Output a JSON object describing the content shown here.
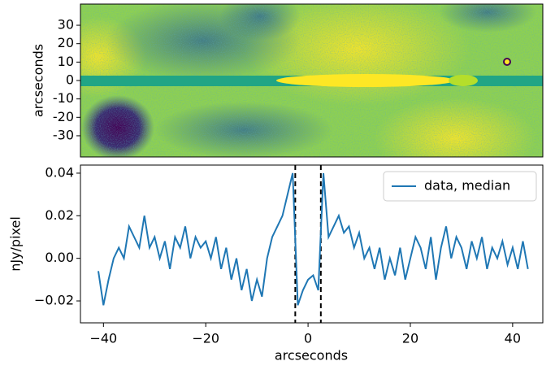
{
  "chart_data": [
    {
      "type": "image",
      "ylabel": "arcseconds",
      "xlim": [
        -44.5,
        45.9
      ],
      "ylim": [
        -41.5,
        41.5
      ],
      "yticks": [
        30,
        20,
        10,
        0,
        -10,
        -20,
        -30
      ]
    },
    {
      "type": "line",
      "xlabel": "arcseconds",
      "ylabel": "nJy/pixel",
      "x": [
        -41,
        -40,
        -39,
        -38,
        -37,
        -36,
        -35,
        -34,
        -33,
        -32,
        -31,
        -30,
        -29,
        -28,
        -27,
        -26,
        -25,
        -24,
        -23,
        -22,
        -21,
        -20,
        -19,
        -18,
        -17,
        -16,
        -15,
        -14,
        -13,
        -12,
        -11,
        -10,
        -9,
        -8,
        -7,
        -6,
        -5,
        -4,
        -3,
        -2,
        -1,
        0,
        1,
        2,
        3,
        4,
        5,
        6,
        7,
        8,
        9,
        10,
        11,
        12,
        13,
        14,
        15,
        16,
        17,
        18,
        19,
        20,
        21,
        22,
        23,
        24,
        25,
        26,
        27,
        28,
        29,
        30,
        31,
        32,
        33,
        34,
        35,
        36,
        37,
        38,
        39,
        40,
        41,
        42,
        43
      ],
      "series": [
        {
          "name": "data, median",
          "color": "#1f77b4",
          "values": [
            -0.006,
            -0.022,
            -0.01,
            0.0,
            0.005,
            0.0,
            0.015,
            0.01,
            0.005,
            0.02,
            0.005,
            0.01,
            0.0,
            0.008,
            -0.005,
            0.01,
            0.005,
            0.015,
            0.0,
            0.01,
            0.005,
            0.008,
            0.0,
            0.01,
            -0.005,
            0.005,
            -0.01,
            0.0,
            -0.015,
            -0.005,
            -0.02,
            -0.01,
            -0.018,
            0.0,
            0.01,
            0.015,
            0.02,
            0.03,
            0.04,
            -0.022,
            -0.015,
            -0.01,
            -0.008,
            -0.015,
            0.04,
            0.01,
            0.015,
            0.02,
            0.012,
            0.015,
            0.005,
            0.012,
            0.0,
            0.005,
            -0.005,
            0.005,
            -0.01,
            0.0,
            -0.008,
            0.005,
            -0.01,
            0.0,
            0.01,
            0.005,
            -0.005,
            0.01,
            -0.01,
            0.005,
            0.015,
            0.0,
            0.01,
            0.005,
            -0.005,
            0.008,
            0.0,
            0.01,
            -0.005,
            0.005,
            0.0,
            0.008,
            -0.003,
            0.005,
            -0.005,
            0.008,
            -0.005
          ]
        }
      ],
      "vlines": [
        -2.5,
        2.5
      ],
      "xlim": [
        -44.5,
        45.9
      ],
      "ylim": [
        -0.0303,
        0.0438
      ],
      "xticks": [
        {
          "value": -40,
          "label": "−40"
        },
        {
          "value": -20,
          "label": "−20"
        },
        0,
        20,
        40
      ],
      "yticks": [
        {
          "value": 0.04,
          "label": "0.04"
        },
        {
          "value": 0.02,
          "label": "0.02"
        },
        {
          "value": 0,
          "label": "0.00"
        },
        {
          "value": -0.02,
          "label": "−0.02"
        }
      ],
      "legend": "upper right"
    }
  ]
}
